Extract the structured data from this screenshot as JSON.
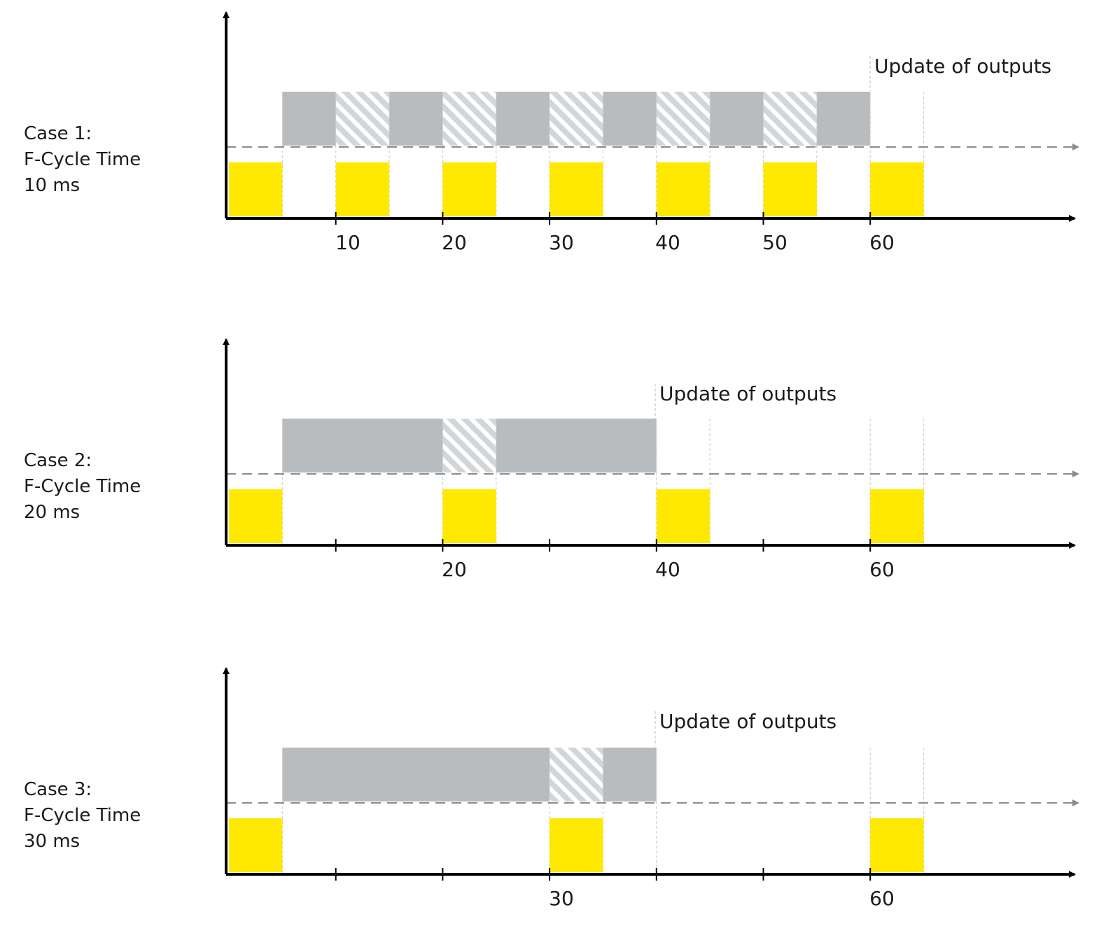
{
  "diagram": {
    "update_text": "Update of outputs",
    "colors": {
      "yellow": "#FFE900",
      "gray": "#B9BCBE",
      "hatch_stripe": "#D3D6D8",
      "axis": "#000000",
      "dashed": "#8C8C8C",
      "guide": "#D0D0D0"
    },
    "cases": [
      {
        "label_lines": [
          "Case 1:",
          "F-Cycle Time",
          "10 ms"
        ],
        "tick_labels": [
          "10",
          "20",
          "30",
          "40",
          "50",
          "60"
        ],
        "yellow_starts": [
          0,
          10,
          20,
          30,
          40,
          50,
          60
        ],
        "gray_end": 60,
        "hatched_starts": [
          10,
          20,
          30,
          40,
          50
        ]
      },
      {
        "label_lines": [
          "Case 2:",
          "F-Cycle Time",
          "20 ms"
        ],
        "tick_labels": [
          "20",
          "40",
          "60"
        ],
        "yellow_starts": [
          0,
          20,
          40,
          60
        ],
        "gray_end": 40,
        "hatched_starts": [
          20
        ]
      },
      {
        "label_lines": [
          "Case 3:",
          "F-Cycle Time",
          "30 ms"
        ],
        "tick_labels": [
          "30",
          "60"
        ],
        "yellow_starts": [
          0,
          30,
          60
        ],
        "gray_end": 40,
        "hatched_starts": [
          30
        ]
      }
    ]
  }
}
